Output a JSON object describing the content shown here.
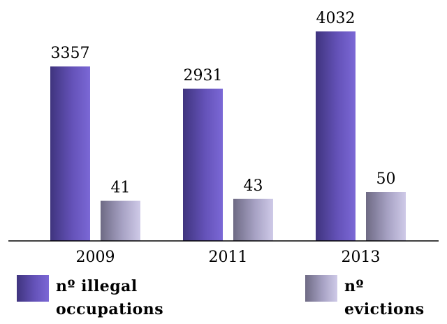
{
  "chart_data": {
    "type": "bar",
    "categories": [
      "2009",
      "2011",
      "2013"
    ],
    "series": [
      {
        "name": "nº illegal occupations",
        "values": [
          3357,
          2931,
          4032
        ],
        "color": "#6a58c4"
      },
      {
        "name": "nº evictions",
        "values": [
          41,
          43,
          50
        ],
        "color": "#b7b1d6"
      }
    ],
    "second_series_scale": "nº evictions bars drawn on separate (independent) scale",
    "title": "",
    "xlabel": "",
    "ylabel": "",
    "grid": false,
    "legend_position": "bottom"
  },
  "legend": [
    {
      "label": "nº illegal occupations"
    },
    {
      "label": "nº evictions"
    }
  ]
}
